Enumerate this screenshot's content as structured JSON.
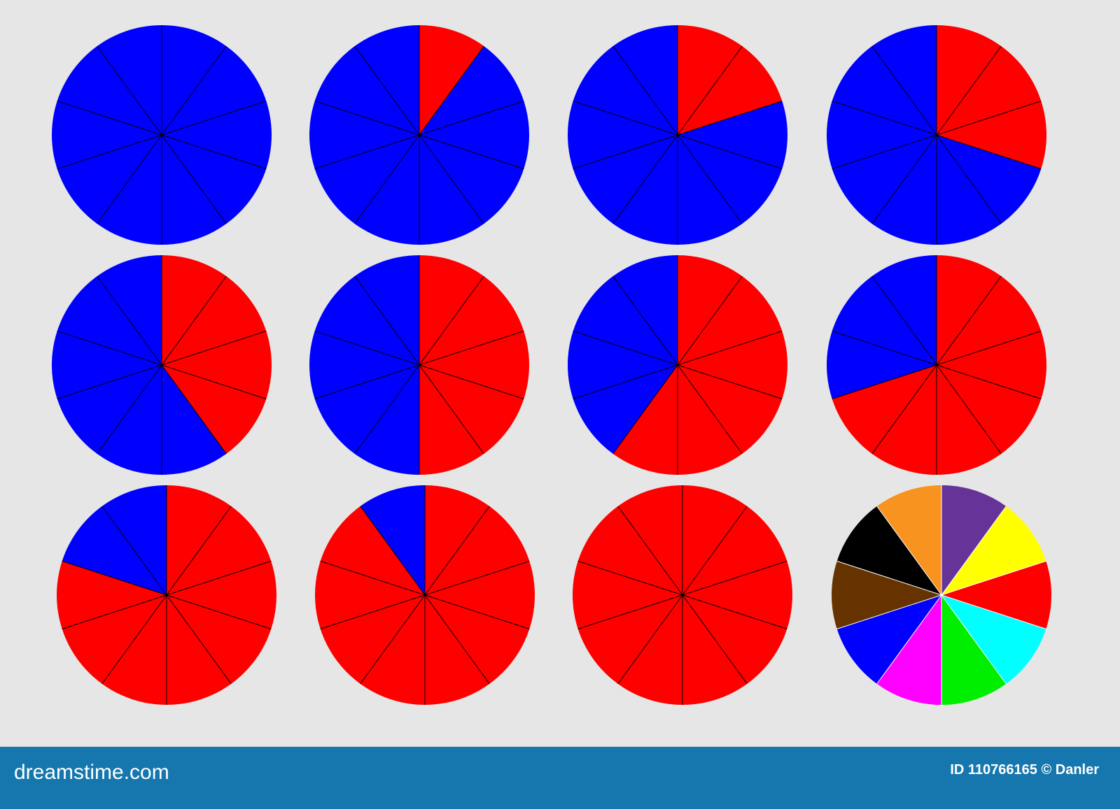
{
  "chart_data": [
    {
      "type": "pie",
      "values": [
        0,
        10
      ],
      "colors": [
        "#ff0000",
        "#0000ff"
      ]
    },
    {
      "type": "pie",
      "values": [
        1,
        9
      ],
      "colors": [
        "#ff0000",
        "#0000ff"
      ]
    },
    {
      "type": "pie",
      "values": [
        2,
        8
      ],
      "colors": [
        "#ff0000",
        "#0000ff"
      ]
    },
    {
      "type": "pie",
      "values": [
        3,
        7
      ],
      "colors": [
        "#ff0000",
        "#0000ff"
      ]
    },
    {
      "type": "pie",
      "values": [
        4,
        6
      ],
      "colors": [
        "#ff0000",
        "#0000ff"
      ]
    },
    {
      "type": "pie",
      "values": [
        5,
        5
      ],
      "colors": [
        "#ff0000",
        "#0000ff"
      ]
    },
    {
      "type": "pie",
      "values": [
        6,
        4
      ],
      "colors": [
        "#ff0000",
        "#0000ff"
      ]
    },
    {
      "type": "pie",
      "values": [
        7,
        3
      ],
      "colors": [
        "#ff0000",
        "#0000ff"
      ]
    },
    {
      "type": "pie",
      "values": [
        8,
        2
      ],
      "colors": [
        "#ff0000",
        "#0000ff"
      ]
    },
    {
      "type": "pie",
      "values": [
        9,
        1
      ],
      "colors": [
        "#ff0000",
        "#0000ff"
      ]
    },
    {
      "type": "pie",
      "values": [
        10,
        0
      ],
      "colors": [
        "#ff0000",
        "#0000ff"
      ]
    },
    {
      "type": "pie",
      "values": [
        1,
        1,
        1,
        1,
        1,
        1,
        1,
        1,
        1,
        1
      ],
      "colors": [
        "#663399",
        "#ffff00",
        "#ff0000",
        "#00ffff",
        "#00ee00",
        "#ff00ff",
        "#0000ff",
        "#663300",
        "#000000",
        "#f7931e"
      ]
    }
  ],
  "footer": {
    "site": "dreamstime.com",
    "credit": "ID 110766165 © Danler"
  }
}
